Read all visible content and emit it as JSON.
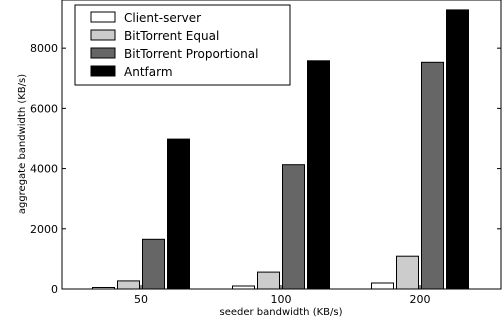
{
  "chart_data": {
    "type": "bar",
    "title": "",
    "xlabel": "seeder bandwidth (KB/s)",
    "ylabel": "aggregate bandwidth (KB/s)",
    "categories": [
      "50",
      "100",
      "200"
    ],
    "series": [
      {
        "name": "Client-server",
        "values": [
          50,
          100,
          200
        ],
        "color": "#ffffff"
      },
      {
        "name": "BitTorrent Equal",
        "values": [
          270,
          560,
          1090
        ],
        "color": "#cccccc"
      },
      {
        "name": "BitTorrent Proportional",
        "values": [
          1650,
          4130,
          7530
        ],
        "color": "#666666"
      },
      {
        "name": "Antfarm",
        "values": [
          4980,
          7580,
          9270
        ],
        "color": "#000000"
      }
    ],
    "ylim": [
      0,
      9600
    ],
    "yticks": [
      0,
      2000,
      4000,
      6000,
      8000
    ],
    "legend_position": "top-left",
    "grid": false
  }
}
